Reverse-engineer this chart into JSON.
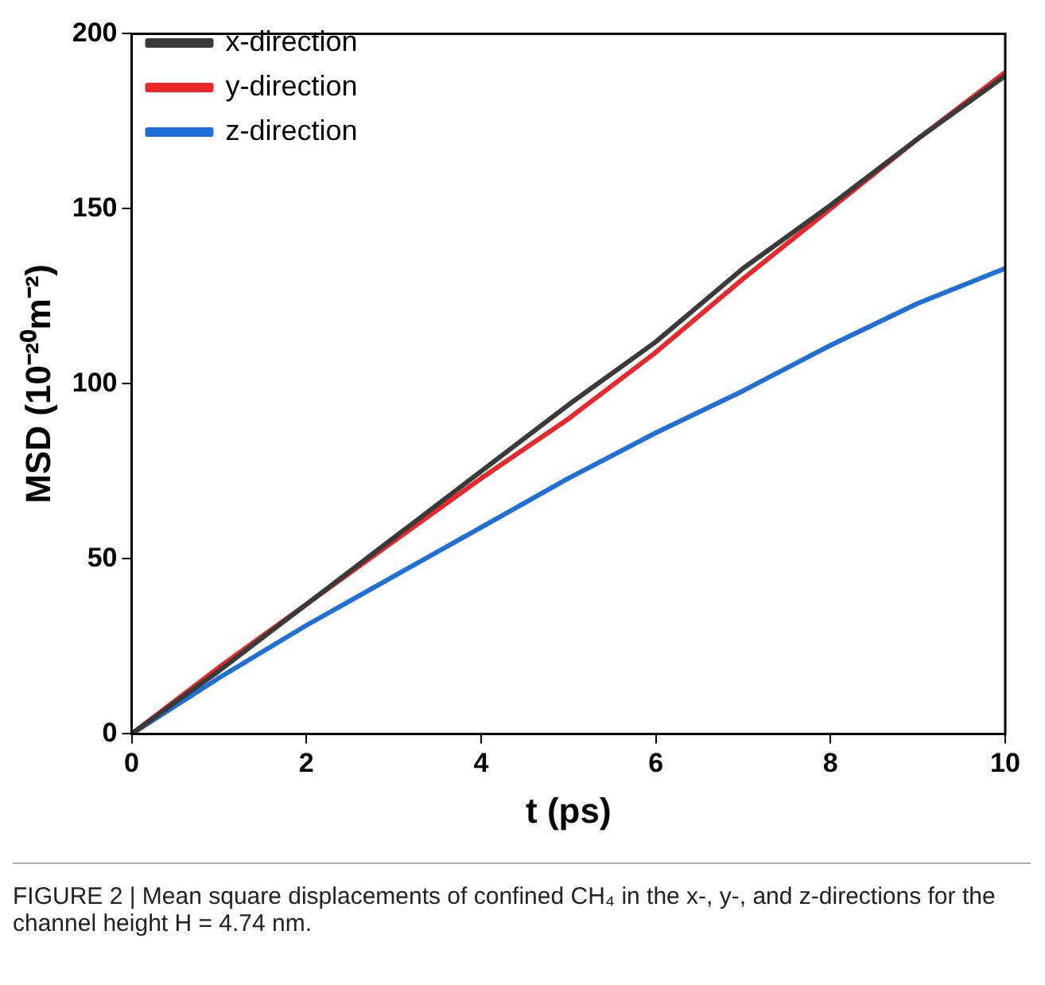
{
  "chart_data": {
    "type": "line",
    "xlabel": "t (ps)",
    "ylabel": "MSD (10⁻²⁰m⁻²)",
    "x": [
      0,
      1,
      2,
      3,
      4,
      5,
      6,
      7,
      8,
      9,
      10
    ],
    "series": [
      {
        "name": "x-direction",
        "color": "#3a3a3a",
        "values": [
          0,
          18,
          37,
          56,
          75,
          94,
          112,
          133,
          151,
          170,
          188
        ]
      },
      {
        "name": "y-direction",
        "color": "#e8282b",
        "values": [
          0,
          19,
          37,
          55,
          73,
          90,
          109,
          130,
          150,
          170,
          189
        ]
      },
      {
        "name": "z-direction",
        "color": "#1f6fd6",
        "values": [
          0,
          16,
          31,
          45,
          59,
          73,
          86,
          98,
          111,
          123,
          133
        ]
      }
    ],
    "xlim": [
      0,
      10
    ],
    "xticks": [
      0,
      2,
      4,
      6,
      8,
      10
    ],
    "ylim": [
      0,
      200
    ],
    "yticks": [
      0,
      50,
      100,
      150,
      200
    ],
    "grid": false,
    "legend": "top left",
    "marker": "none",
    "line_style": "solid",
    "annotations": [
      "FIGURE 2 | Mean square displacements of confined CH₄ in the x-, y-, and z-directions for the channel height H = 4.74 nm."
    ]
  }
}
